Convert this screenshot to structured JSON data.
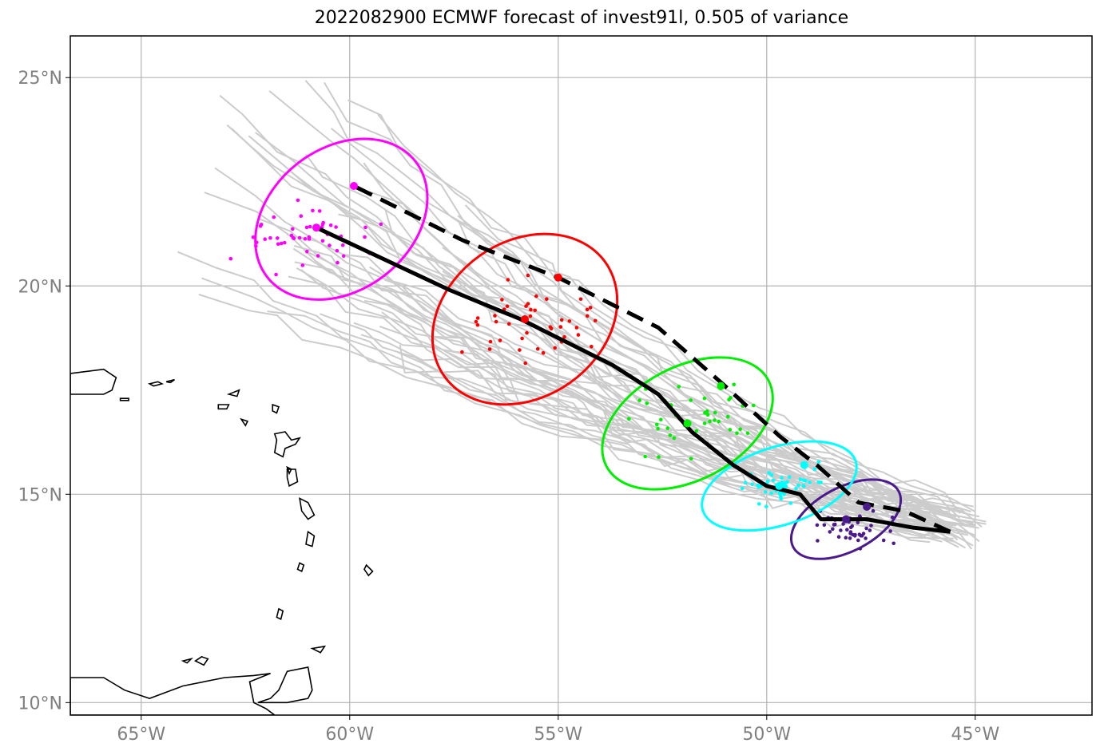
{
  "title": "2022082900 ECMWF forecast of invest91l, 0.505 of variance",
  "axes": {
    "lon_range": [
      -66.7,
      -42.2
    ],
    "lat_range": [
      9.7,
      26.0
    ],
    "x_ticks": [
      {
        "value": -65,
        "label": "65°W"
      },
      {
        "value": -60,
        "label": "60°W"
      },
      {
        "value": -55,
        "label": "55°W"
      },
      {
        "value": -50,
        "label": "50°W"
      },
      {
        "value": -45,
        "label": "45°W"
      }
    ],
    "y_ticks": [
      {
        "value": 10,
        "label": "10°N"
      },
      {
        "value": 15,
        "label": "15°N"
      },
      {
        "value": 20,
        "label": "20°N"
      },
      {
        "value": 25,
        "label": "25°N"
      }
    ],
    "grid": true,
    "grid_color": "#b3b3b3",
    "tick_label_color": "#808080"
  },
  "chart_data": {
    "type": "map-track-forecast",
    "ensemble_color": "#cccccc",
    "mean_track": {
      "style": "solid",
      "color": "#000000",
      "points": [
        [
          -45.6,
          14.1
        ],
        [
          -46.5,
          14.2
        ],
        [
          -47.6,
          14.4
        ],
        [
          -48.7,
          14.4
        ],
        [
          -49.2,
          15.0
        ],
        [
          -50.0,
          15.2
        ],
        [
          -50.8,
          15.7
        ],
        [
          -51.8,
          16.5
        ],
        [
          -52.6,
          17.4
        ],
        [
          -53.7,
          18.1
        ],
        [
          -55.9,
          19.2
        ],
        [
          -57.6,
          19.9
        ],
        [
          -60.8,
          21.4
        ]
      ],
      "markers": [
        [
          -48.1,
          14.4
        ],
        [
          -49.7,
          15.2
        ],
        [
          -51.9,
          16.7
        ],
        [
          -55.8,
          19.2
        ],
        [
          -60.8,
          21.4
        ]
      ]
    },
    "alt_track": {
      "style": "dashed",
      "color": "#000000",
      "points": [
        [
          -45.6,
          14.1
        ],
        [
          -46.7,
          14.6
        ],
        [
          -47.8,
          14.8
        ],
        [
          -48.8,
          15.7
        ],
        [
          -49.7,
          16.4
        ],
        [
          -51.0,
          17.6
        ],
        [
          -52.6,
          19.0
        ],
        [
          -55.0,
          20.2
        ],
        [
          -57.3,
          21.1
        ],
        [
          -59.9,
          22.4
        ]
      ],
      "markers": [
        [
          -47.6,
          14.7
        ],
        [
          -49.1,
          15.7
        ],
        [
          -51.1,
          17.6
        ],
        [
          -55.0,
          20.2
        ],
        [
          -59.9,
          22.4
        ]
      ]
    },
    "ellipses": [
      {
        "color": "#4b1a8c",
        "center": [
          -48.1,
          14.4
        ],
        "rx": 2.6,
        "ry": 0.9,
        "angle_deg": 28
      },
      {
        "color": "#00ffff",
        "center": [
          -49.7,
          15.2
        ],
        "rx": 3.5,
        "ry": 1.1,
        "angle_deg": 18
      },
      {
        "color": "#00ee00",
        "center": [
          -51.9,
          16.7
        ],
        "rx": 4.0,
        "ry": 1.6,
        "angle_deg": 28
      },
      {
        "color": "#ff0000",
        "center": [
          -55.8,
          19.2
        ],
        "rx": 4.3,
        "ry": 2.2,
        "angle_deg": 35
      },
      {
        "color": "#ff00ff",
        "center": [
          -60.2,
          21.6
        ],
        "rx": 4.1,
        "ry": 2.0,
        "angle_deg": 38
      }
    ],
    "scatter_groups": [
      {
        "color": "#4b1a8c",
        "center": [
          -48.0,
          14.2
        ],
        "spread": [
          1.5,
          0.6
        ],
        "count": 45,
        "seed": 3
      },
      {
        "color": "#00ffff",
        "center": [
          -49.6,
          15.2
        ],
        "spread": [
          1.8,
          0.8
        ],
        "count": 48,
        "seed": 7
      },
      {
        "color": "#00ee00",
        "center": [
          -51.7,
          16.8
        ],
        "spread": [
          2.3,
          1.2
        ],
        "count": 46,
        "seed": 11
      },
      {
        "color": "#ff0000",
        "center": [
          -55.6,
          19.2
        ],
        "spread": [
          2.5,
          1.4
        ],
        "count": 45,
        "seed": 17
      },
      {
        "color": "#ff00ff",
        "center": [
          -60.9,
          21.2
        ],
        "spread": [
          2.4,
          1.3
        ],
        "count": 48,
        "seed": 23
      }
    ]
  }
}
